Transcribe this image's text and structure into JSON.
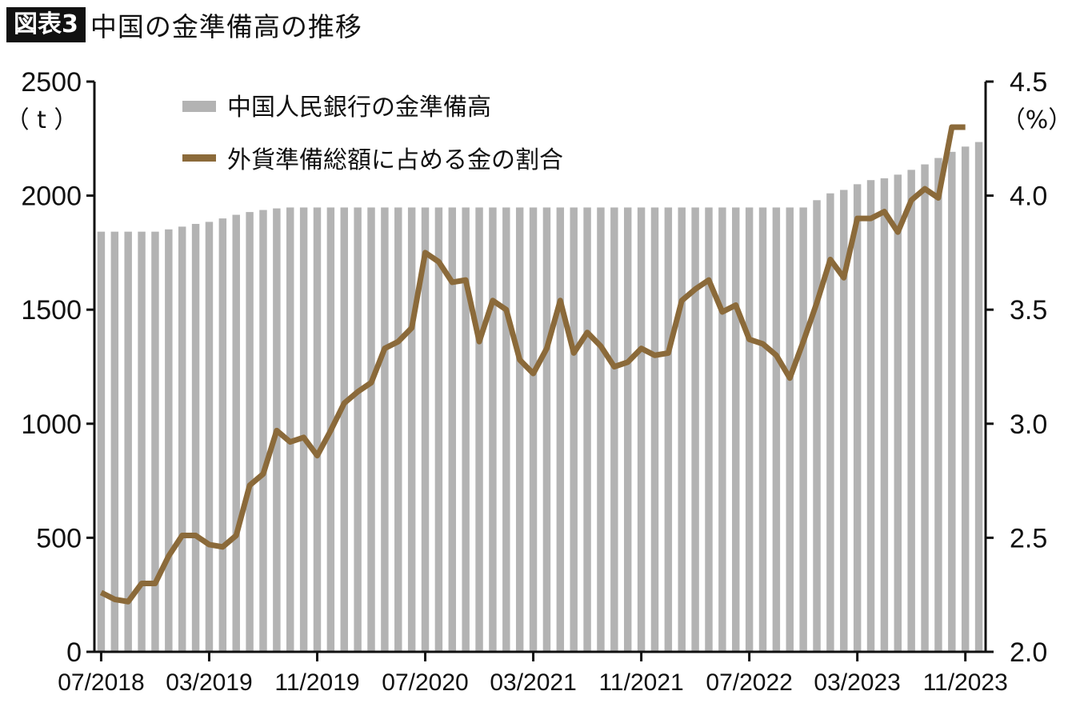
{
  "header": {
    "badge": "図表3",
    "title": "中国の金準備高の推移"
  },
  "chart_data": {
    "type": "bar+line",
    "title": "中国の金準備高の推移",
    "left_axis": {
      "unit": "（ t ）",
      "ylim": [
        0,
        2500
      ],
      "ticks": [
        "0",
        "500",
        "1000",
        "1500",
        "2000",
        "2500"
      ]
    },
    "right_axis": {
      "unit": "（%）",
      "ylim": [
        2.0,
        4.5
      ],
      "ticks": [
        "2.0",
        "2.5",
        "3.0",
        "3.5",
        "4.0",
        "4.5"
      ]
    },
    "x_tick_labels": [
      "07/2018",
      "03/2019",
      "11/2019",
      "07/2020",
      "03/2021",
      "11/2021",
      "07/2022",
      "03/2023",
      "11/2023"
    ],
    "x_tick_index": [
      0,
      8,
      16,
      24,
      32,
      40,
      48,
      56,
      64
    ],
    "legend_position": "top-left",
    "colors": {
      "bars": "#b3b3b3",
      "line": "#8b6a3a",
      "axis": "#111111"
    },
    "series": [
      {
        "name": "中国人民銀行の金準備高",
        "type": "bar",
        "axis": "left",
        "values": [
          1842,
          1842,
          1842,
          1842,
          1842,
          1852,
          1864,
          1876,
          1885,
          1900,
          1916,
          1928,
          1937,
          1944,
          1948,
          1948,
          1948,
          1948,
          1948,
          1948,
          1948,
          1948,
          1948,
          1948,
          1948,
          1948,
          1948,
          1948,
          1948,
          1948,
          1948,
          1948,
          1948,
          1948,
          1948,
          1948,
          1948,
          1948,
          1948,
          1948,
          1948,
          1948,
          1948,
          1948,
          1948,
          1948,
          1948,
          1948,
          1948,
          1948,
          1948,
          1948,
          1948,
          1980,
          2010,
          2025,
          2050,
          2068,
          2076,
          2092,
          2113,
          2137,
          2165,
          2192,
          2215,
          2235
        ]
      },
      {
        "name": "外貨準備総額に占める金の割合",
        "type": "line",
        "axis": "right",
        "values": [
          2.26,
          2.23,
          2.22,
          2.3,
          2.3,
          2.42,
          2.51,
          2.51,
          2.47,
          2.46,
          2.51,
          2.73,
          2.78,
          2.97,
          2.92,
          2.94,
          2.86,
          2.97,
          3.09,
          3.14,
          3.18,
          3.33,
          3.36,
          3.42,
          3.75,
          3.71,
          3.62,
          3.63,
          3.36,
          3.54,
          3.5,
          3.28,
          3.22,
          3.33,
          3.54,
          3.31,
          3.4,
          3.34,
          3.25,
          3.27,
          3.33,
          3.3,
          3.31,
          3.54,
          3.59,
          3.63,
          3.49,
          3.52,
          3.37,
          3.35,
          3.3,
          3.2,
          3.36,
          3.53,
          3.72,
          3.64,
          3.9,
          3.9,
          3.93,
          3.84,
          3.98,
          4.03,
          3.99,
          4.3,
          4.3
        ]
      }
    ]
  }
}
